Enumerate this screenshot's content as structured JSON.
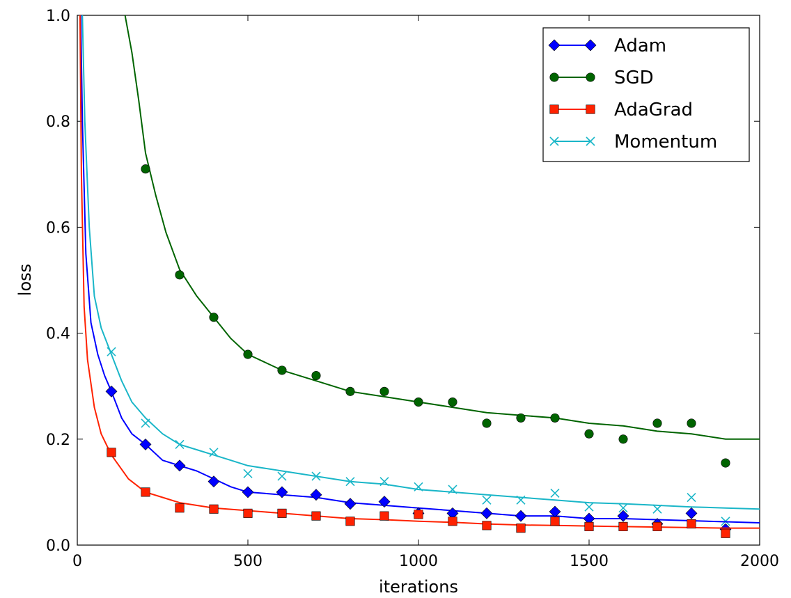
{
  "chart_data": {
    "type": "line",
    "xlabel": "iterations",
    "ylabel": "loss",
    "xlim": [
      0,
      2000
    ],
    "ylim": [
      0.0,
      1.0
    ],
    "xticks": [
      "0",
      "500",
      "1000",
      "1500",
      "2000"
    ],
    "yticks": [
      "0.0",
      "0.2",
      "0.4",
      "0.6",
      "0.8",
      "1.0"
    ],
    "grid": false,
    "legend_position": "top-right",
    "series": [
      {
        "name": "Adam",
        "color": "#0000ff",
        "marker": "diamond",
        "line": [
          [
            10,
            1.0
          ],
          [
            15,
            0.8
          ],
          [
            25,
            0.55
          ],
          [
            40,
            0.42
          ],
          [
            60,
            0.36
          ],
          [
            80,
            0.32
          ],
          [
            100,
            0.29
          ],
          [
            130,
            0.24
          ],
          [
            160,
            0.21
          ],
          [
            200,
            0.19
          ],
          [
            250,
            0.16
          ],
          [
            300,
            0.15
          ],
          [
            350,
            0.14
          ],
          [
            400,
            0.125
          ],
          [
            450,
            0.11
          ],
          [
            500,
            0.1
          ],
          [
            600,
            0.095
          ],
          [
            700,
            0.09
          ],
          [
            800,
            0.08
          ],
          [
            900,
            0.075
          ],
          [
            1000,
            0.07
          ],
          [
            1100,
            0.065
          ],
          [
            1200,
            0.06
          ],
          [
            1300,
            0.055
          ],
          [
            1400,
            0.055
          ],
          [
            1500,
            0.05
          ],
          [
            1600,
            0.05
          ],
          [
            1700,
            0.048
          ],
          [
            1800,
            0.046
          ],
          [
            1900,
            0.044
          ],
          [
            2000,
            0.042
          ]
        ],
        "markers_x": [
          100,
          200,
          300,
          400,
          500,
          600,
          700,
          800,
          900,
          1000,
          1100,
          1200,
          1300,
          1400,
          1500,
          1600,
          1700,
          1800,
          1900
        ],
        "markers_y": [
          0.29,
          0.19,
          0.15,
          0.12,
          0.1,
          0.1,
          0.095,
          0.078,
          0.082,
          0.06,
          0.06,
          0.06,
          0.055,
          0.063,
          0.05,
          0.055,
          0.04,
          0.06,
          0.03
        ]
      },
      {
        "name": "SGD",
        "color": "#006400",
        "marker": "circle",
        "line": [
          [
            140,
            1.0
          ],
          [
            160,
            0.93
          ],
          [
            180,
            0.84
          ],
          [
            200,
            0.74
          ],
          [
            230,
            0.66
          ],
          [
            260,
            0.59
          ],
          [
            300,
            0.52
          ],
          [
            350,
            0.47
          ],
          [
            400,
            0.43
          ],
          [
            450,
            0.39
          ],
          [
            500,
            0.36
          ],
          [
            600,
            0.33
          ],
          [
            700,
            0.31
          ],
          [
            800,
            0.29
          ],
          [
            900,
            0.28
          ],
          [
            1000,
            0.27
          ],
          [
            1100,
            0.26
          ],
          [
            1200,
            0.25
          ],
          [
            1300,
            0.245
          ],
          [
            1400,
            0.24
          ],
          [
            1500,
            0.23
          ],
          [
            1600,
            0.225
          ],
          [
            1700,
            0.215
          ],
          [
            1800,
            0.21
          ],
          [
            1900,
            0.2
          ],
          [
            2000,
            0.2
          ]
        ],
        "markers_x": [
          200,
          300,
          400,
          500,
          600,
          700,
          800,
          900,
          1000,
          1100,
          1200,
          1300,
          1400,
          1500,
          1600,
          1700,
          1800,
          1900
        ],
        "markers_y": [
          0.71,
          0.51,
          0.43,
          0.36,
          0.33,
          0.32,
          0.29,
          0.29,
          0.27,
          0.27,
          0.23,
          0.24,
          0.24,
          0.21,
          0.2,
          0.23,
          0.23,
          0.155
        ]
      },
      {
        "name": "AdaGrad",
        "color": "#ff2200",
        "marker": "square",
        "line": [
          [
            8,
            1.0
          ],
          [
            12,
            0.7
          ],
          [
            20,
            0.45
          ],
          [
            30,
            0.35
          ],
          [
            50,
            0.26
          ],
          [
            70,
            0.21
          ],
          [
            100,
            0.17
          ],
          [
            150,
            0.125
          ],
          [
            200,
            0.1
          ],
          [
            250,
            0.09
          ],
          [
            300,
            0.08
          ],
          [
            400,
            0.07
          ],
          [
            500,
            0.065
          ],
          [
            600,
            0.06
          ],
          [
            700,
            0.055
          ],
          [
            800,
            0.05
          ],
          [
            900,
            0.048
          ],
          [
            1000,
            0.045
          ],
          [
            1100,
            0.043
          ],
          [
            1200,
            0.04
          ],
          [
            1300,
            0.038
          ],
          [
            1400,
            0.037
          ],
          [
            1500,
            0.036
          ],
          [
            1600,
            0.035
          ],
          [
            1700,
            0.034
          ],
          [
            1800,
            0.033
          ],
          [
            1900,
            0.032
          ],
          [
            2000,
            0.032
          ]
        ],
        "markers_x": [
          100,
          200,
          300,
          400,
          500,
          600,
          700,
          800,
          900,
          1000,
          1100,
          1200,
          1300,
          1400,
          1500,
          1600,
          1700,
          1800,
          1900
        ],
        "markers_y": [
          0.175,
          0.1,
          0.07,
          0.068,
          0.06,
          0.06,
          0.055,
          0.045,
          0.055,
          0.058,
          0.045,
          0.037,
          0.032,
          0.045,
          0.035,
          0.035,
          0.035,
          0.04,
          0.022
        ]
      },
      {
        "name": "Momentum",
        "color": "#1ab6c8",
        "marker": "x",
        "line": [
          [
            15,
            1.0
          ],
          [
            22,
            0.8
          ],
          [
            35,
            0.6
          ],
          [
            50,
            0.47
          ],
          [
            70,
            0.41
          ],
          [
            100,
            0.36
          ],
          [
            130,
            0.31
          ],
          [
            160,
            0.27
          ],
          [
            200,
            0.24
          ],
          [
            250,
            0.21
          ],
          [
            300,
            0.19
          ],
          [
            350,
            0.18
          ],
          [
            400,
            0.17
          ],
          [
            450,
            0.16
          ],
          [
            500,
            0.15
          ],
          [
            600,
            0.14
          ],
          [
            700,
            0.13
          ],
          [
            800,
            0.12
          ],
          [
            900,
            0.115
          ],
          [
            1000,
            0.105
          ],
          [
            1100,
            0.1
          ],
          [
            1200,
            0.095
          ],
          [
            1300,
            0.09
          ],
          [
            1400,
            0.085
          ],
          [
            1500,
            0.08
          ],
          [
            1600,
            0.078
          ],
          [
            1700,
            0.075
          ],
          [
            1800,
            0.072
          ],
          [
            1900,
            0.07
          ],
          [
            2000,
            0.068
          ]
        ],
        "markers_x": [
          100,
          200,
          300,
          400,
          500,
          600,
          700,
          800,
          900,
          1000,
          1100,
          1200,
          1300,
          1400,
          1500,
          1600,
          1700,
          1800,
          1900
        ],
        "markers_y": [
          0.365,
          0.23,
          0.19,
          0.175,
          0.135,
          0.13,
          0.13,
          0.12,
          0.12,
          0.11,
          0.105,
          0.085,
          0.085,
          0.098,
          0.072,
          0.07,
          0.068,
          0.09,
          0.045
        ]
      }
    ]
  }
}
